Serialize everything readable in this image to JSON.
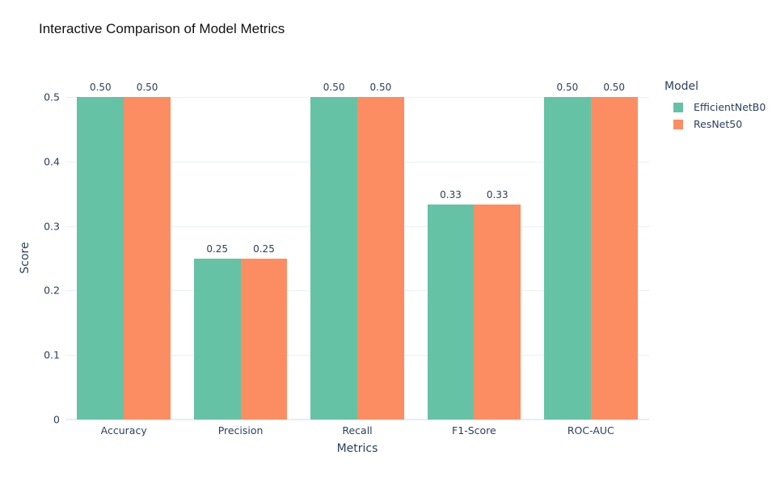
{
  "title": "Interactive Comparison of Model Metrics",
  "chart_data": {
    "type": "bar",
    "barmode": "group",
    "title": "Interactive Comparison of Model Metrics",
    "xlabel": "Metrics",
    "ylabel": "Score",
    "categories": [
      "Accuracy",
      "Precision",
      "Recall",
      "F1-Score",
      "ROC-AUC"
    ],
    "series": [
      {
        "name": "EfficientNetB0",
        "color": "#66c2a5",
        "values": [
          0.5,
          0.25,
          0.5,
          0.3333,
          0.5
        ],
        "labels": [
          "0.50",
          "0.25",
          "0.50",
          "0.33",
          "0.50"
        ]
      },
      {
        "name": "ResNet50",
        "color": "#fc8d62",
        "values": [
          0.5,
          0.25,
          0.5,
          0.3333,
          0.5
        ],
        "labels": [
          "0.50",
          "0.25",
          "0.50",
          "0.33",
          "0.50"
        ]
      }
    ],
    "ylim": [
      0,
      0.5
    ],
    "yticks": [
      "0",
      "0.1",
      "0.2",
      "0.3",
      "0.4",
      "0.5"
    ],
    "legend_title": "Model",
    "legend_position": "right-outside-top",
    "grid": true,
    "text_color": "#2a3f5f",
    "grid_color": "#ebf0f8",
    "zeroline_color": "#e7edf7",
    "value_label_position": "outside"
  }
}
